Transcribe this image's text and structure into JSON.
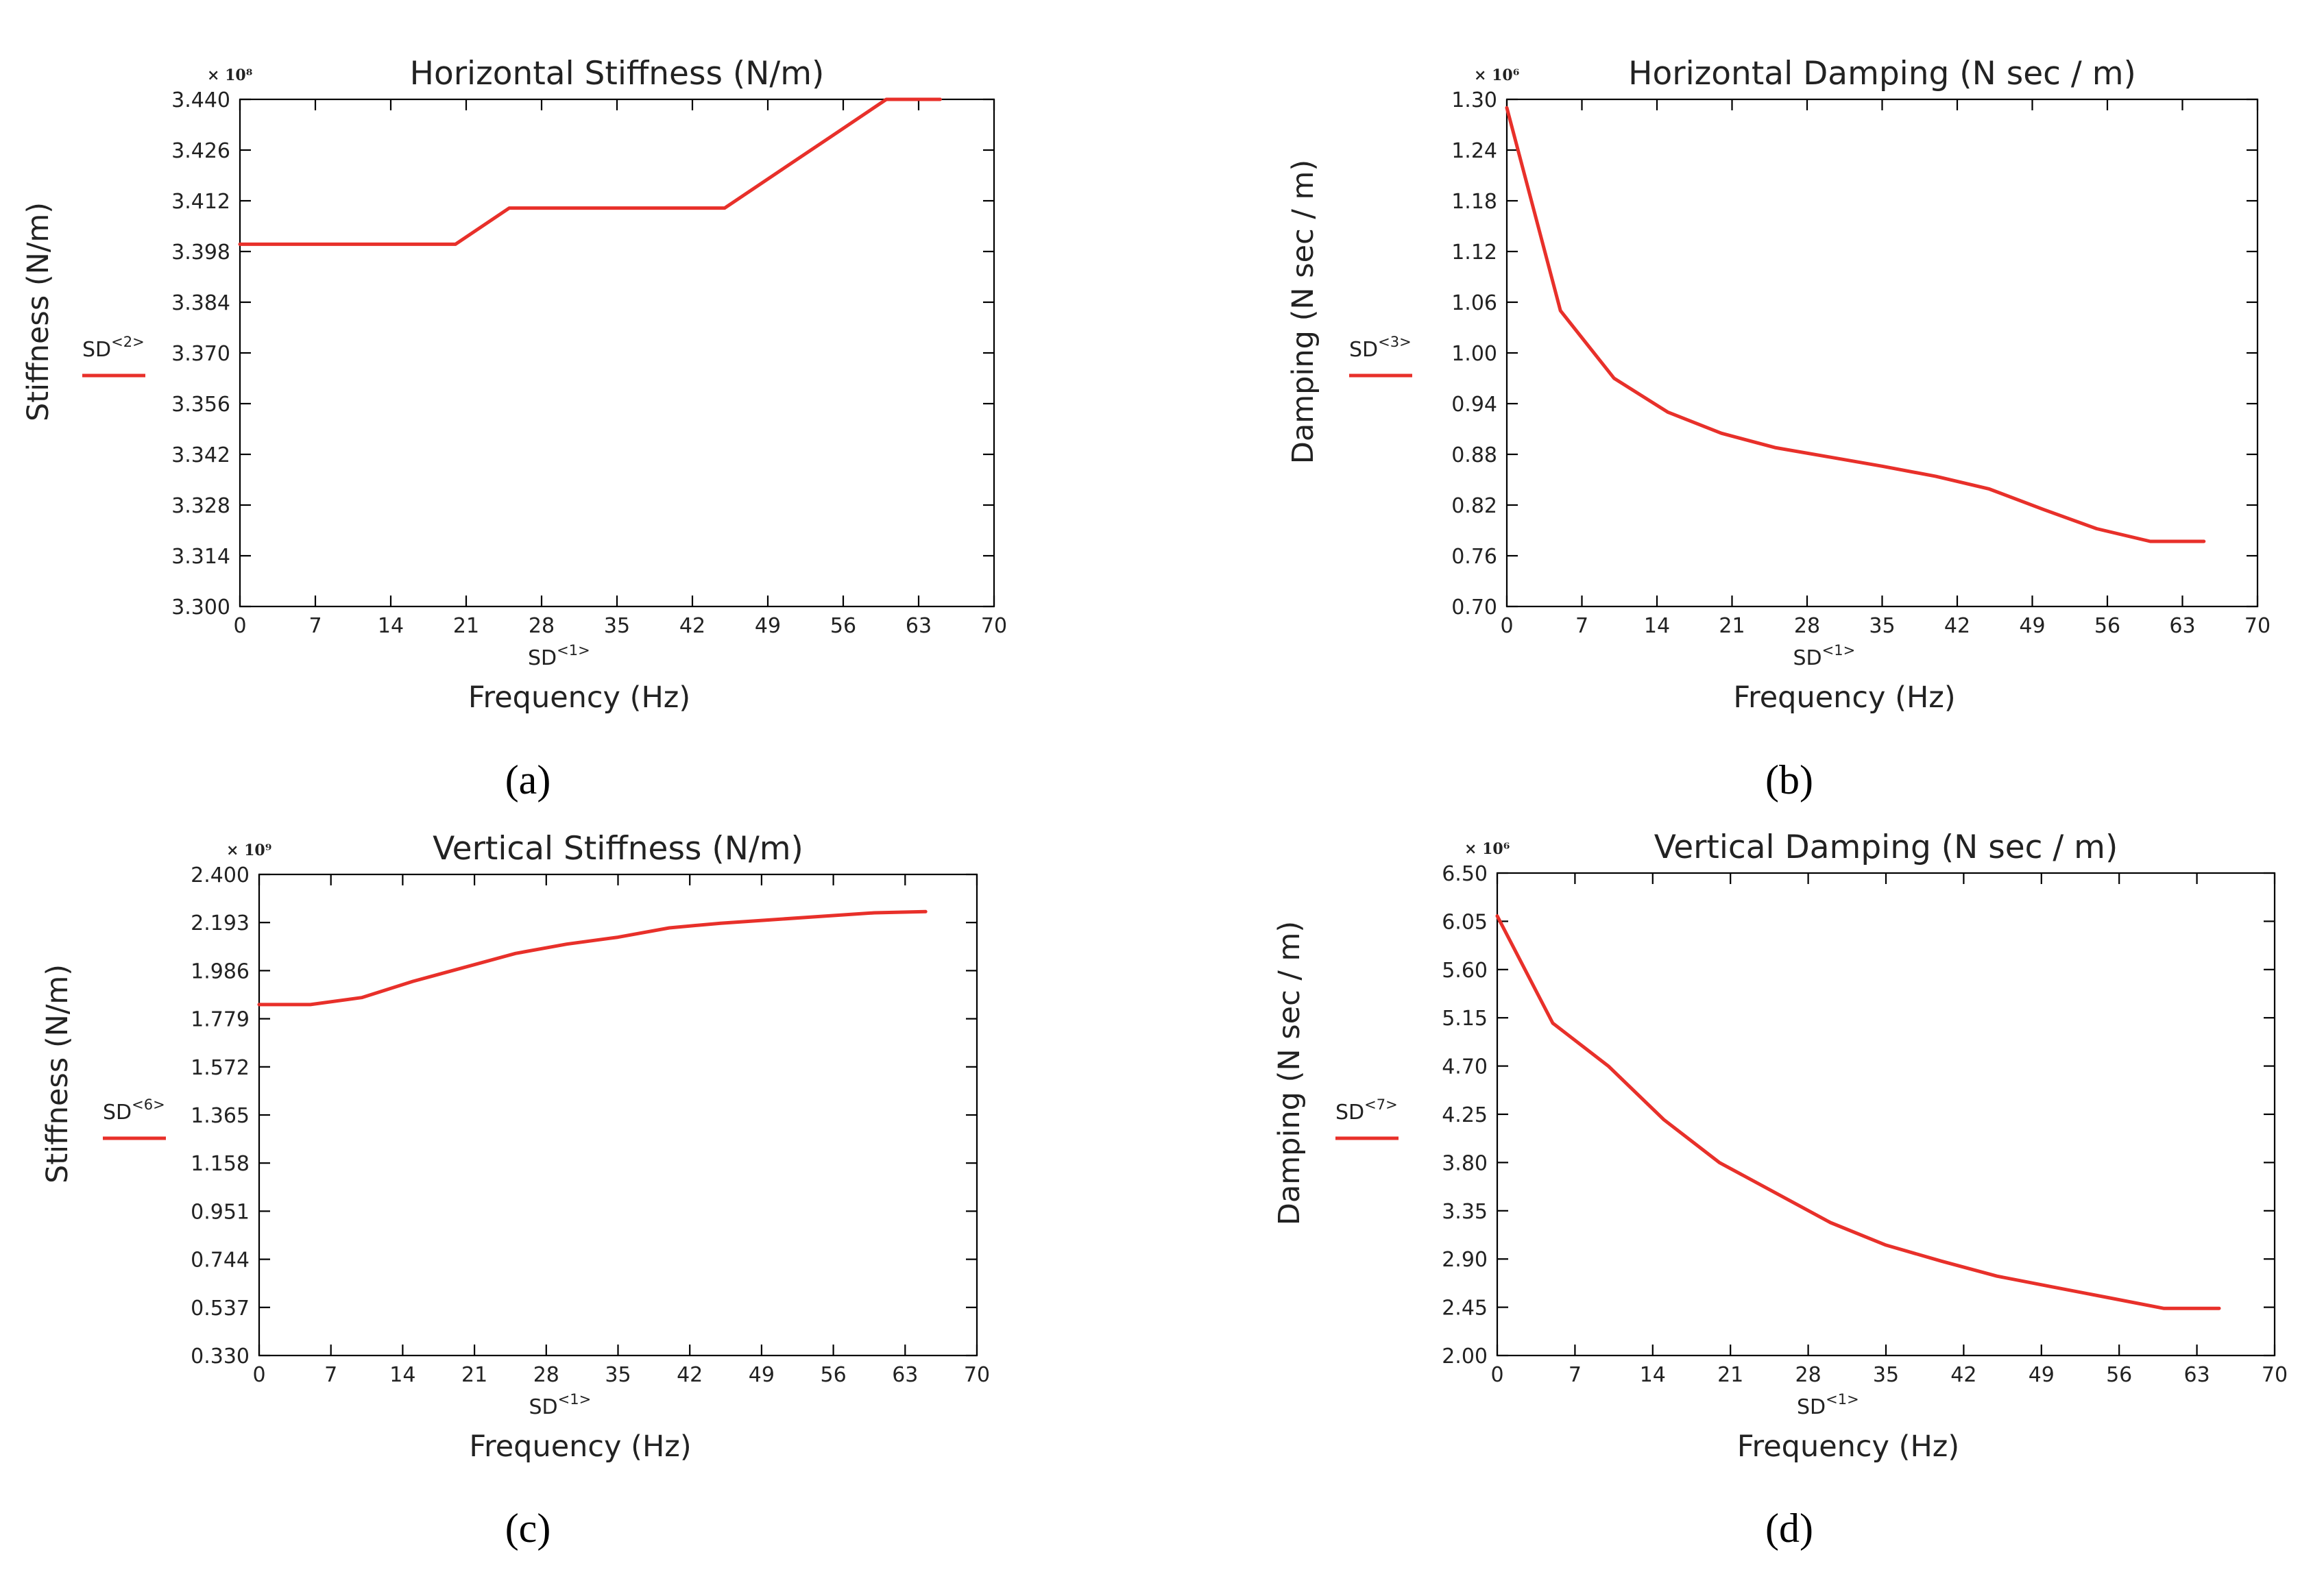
{
  "chart_data": [
    {
      "type": "line",
      "panel_label": "(a)",
      "title": "Horizontal Stiffness (N/m)",
      "xlabel": "Frequency (Hz)",
      "ylabel": "Stiffness (N/m)",
      "multiplier": "× 10⁸",
      "legend": {
        "base": "SD",
        "sup": "<2>"
      },
      "xaxis_legend": {
        "base": "SD",
        "sup": "<1>"
      },
      "xlim": [
        0,
        70
      ],
      "ylim": [
        3.3,
        3.44
      ],
      "x_ticks": [
        "0",
        "7",
        "14",
        "21",
        "28",
        "35",
        "42",
        "49",
        "56",
        "63",
        "70"
      ],
      "y_ticks": [
        "3.300",
        "3.314",
        "3.328",
        "3.342",
        "3.356",
        "3.370",
        "3.384",
        "3.398",
        "3.412",
        "3.426",
        "3.440"
      ],
      "color": "#e8302a",
      "series": [
        {
          "name": "SD<2>",
          "x": [
            0,
            5,
            10,
            15,
            20,
            25,
            30,
            35,
            40,
            45,
            50,
            55,
            60,
            65
          ],
          "y": [
            3.4,
            3.4,
            3.4,
            3.4,
            3.4,
            3.41,
            3.41,
            3.41,
            3.41,
            3.41,
            3.42,
            3.43,
            3.44,
            3.44
          ]
        }
      ]
    },
    {
      "type": "line",
      "panel_label": "(b)",
      "title": "Horizontal Damping (N sec / m)",
      "xlabel": "Frequency (Hz)",
      "ylabel": "Damping (N sec / m)",
      "multiplier": "× 10⁶",
      "legend": {
        "base": "SD",
        "sup": "<3>"
      },
      "xaxis_legend": {
        "base": "SD",
        "sup": "<1>"
      },
      "xlim": [
        0,
        70
      ],
      "ylim": [
        0.7,
        1.3
      ],
      "x_ticks": [
        "0",
        "7",
        "14",
        "21",
        "28",
        "35",
        "42",
        "49",
        "56",
        "63",
        "70"
      ],
      "y_ticks": [
        "0.70",
        "0.76",
        "0.82",
        "0.88",
        "0.94",
        "1.00",
        "1.06",
        "1.12",
        "1.18",
        "1.24",
        "1.30"
      ],
      "color": "#e8302a",
      "series": [
        {
          "name": "SD<3>",
          "x": [
            0,
            5,
            10,
            15,
            20,
            25,
            30,
            35,
            40,
            45,
            50,
            55,
            60,
            65
          ],
          "y": [
            1.29,
            1.05,
            0.97,
            0.93,
            0.905,
            0.888,
            0.877,
            0.866,
            0.854,
            0.839,
            0.815,
            0.792,
            0.777,
            0.777
          ]
        }
      ]
    },
    {
      "type": "line",
      "panel_label": "(c)",
      "title": "Vertical Stiffness (N/m)",
      "xlabel": "Frequency (Hz)",
      "ylabel": "Stiffness (N/m)",
      "multiplier": "× 10⁹",
      "legend": {
        "base": "SD",
        "sup": "<6>"
      },
      "xaxis_legend": {
        "base": "SD",
        "sup": "<1>"
      },
      "xlim": [
        0,
        70
      ],
      "ylim": [
        0.33,
        2.4
      ],
      "x_ticks": [
        "0",
        "7",
        "14",
        "21",
        "28",
        "35",
        "42",
        "49",
        "56",
        "63",
        "70"
      ],
      "y_ticks": [
        "0.330",
        "0.537",
        "0.744",
        "0.951",
        "1.158",
        "1.365",
        "1.572",
        "1.779",
        "1.986",
        "2.193",
        "2.400"
      ],
      "color": "#e8302a",
      "series": [
        {
          "name": "SD<6>",
          "x": [
            0,
            5,
            10,
            15,
            20,
            25,
            30,
            35,
            40,
            45,
            50,
            55,
            60,
            65
          ],
          "y": [
            1.84,
            1.84,
            1.87,
            1.94,
            2.0,
            2.06,
            2.1,
            2.13,
            2.17,
            2.19,
            2.205,
            2.22,
            2.235,
            2.24
          ]
        }
      ]
    },
    {
      "type": "line",
      "panel_label": "(d)",
      "title": "Vertical Damping (N sec / m)",
      "xlabel": "Frequency (Hz)",
      "ylabel": "Damping (N sec / m)",
      "multiplier": "× 10⁶",
      "legend": {
        "base": "SD",
        "sup": "<7>"
      },
      "xaxis_legend": {
        "base": "SD",
        "sup": "<1>"
      },
      "xlim": [
        0,
        70
      ],
      "ylim": [
        2.0,
        6.5
      ],
      "x_ticks": [
        "0",
        "7",
        "14",
        "21",
        "28",
        "35",
        "42",
        "49",
        "56",
        "63",
        "70"
      ],
      "y_ticks": [
        "2.00",
        "2.45",
        "2.90",
        "3.35",
        "3.80",
        "4.25",
        "4.70",
        "5.15",
        "5.60",
        "6.05",
        "6.50"
      ],
      "color": "#e8302a",
      "series": [
        {
          "name": "SD<7>",
          "x": [
            0,
            5,
            10,
            15,
            20,
            25,
            30,
            35,
            40,
            45,
            50,
            55,
            60,
            65
          ],
          "y": [
            6.1,
            5.1,
            4.7,
            4.2,
            3.8,
            3.52,
            3.24,
            3.03,
            2.88,
            2.74,
            2.64,
            2.54,
            2.44,
            2.44
          ]
        }
      ]
    }
  ]
}
